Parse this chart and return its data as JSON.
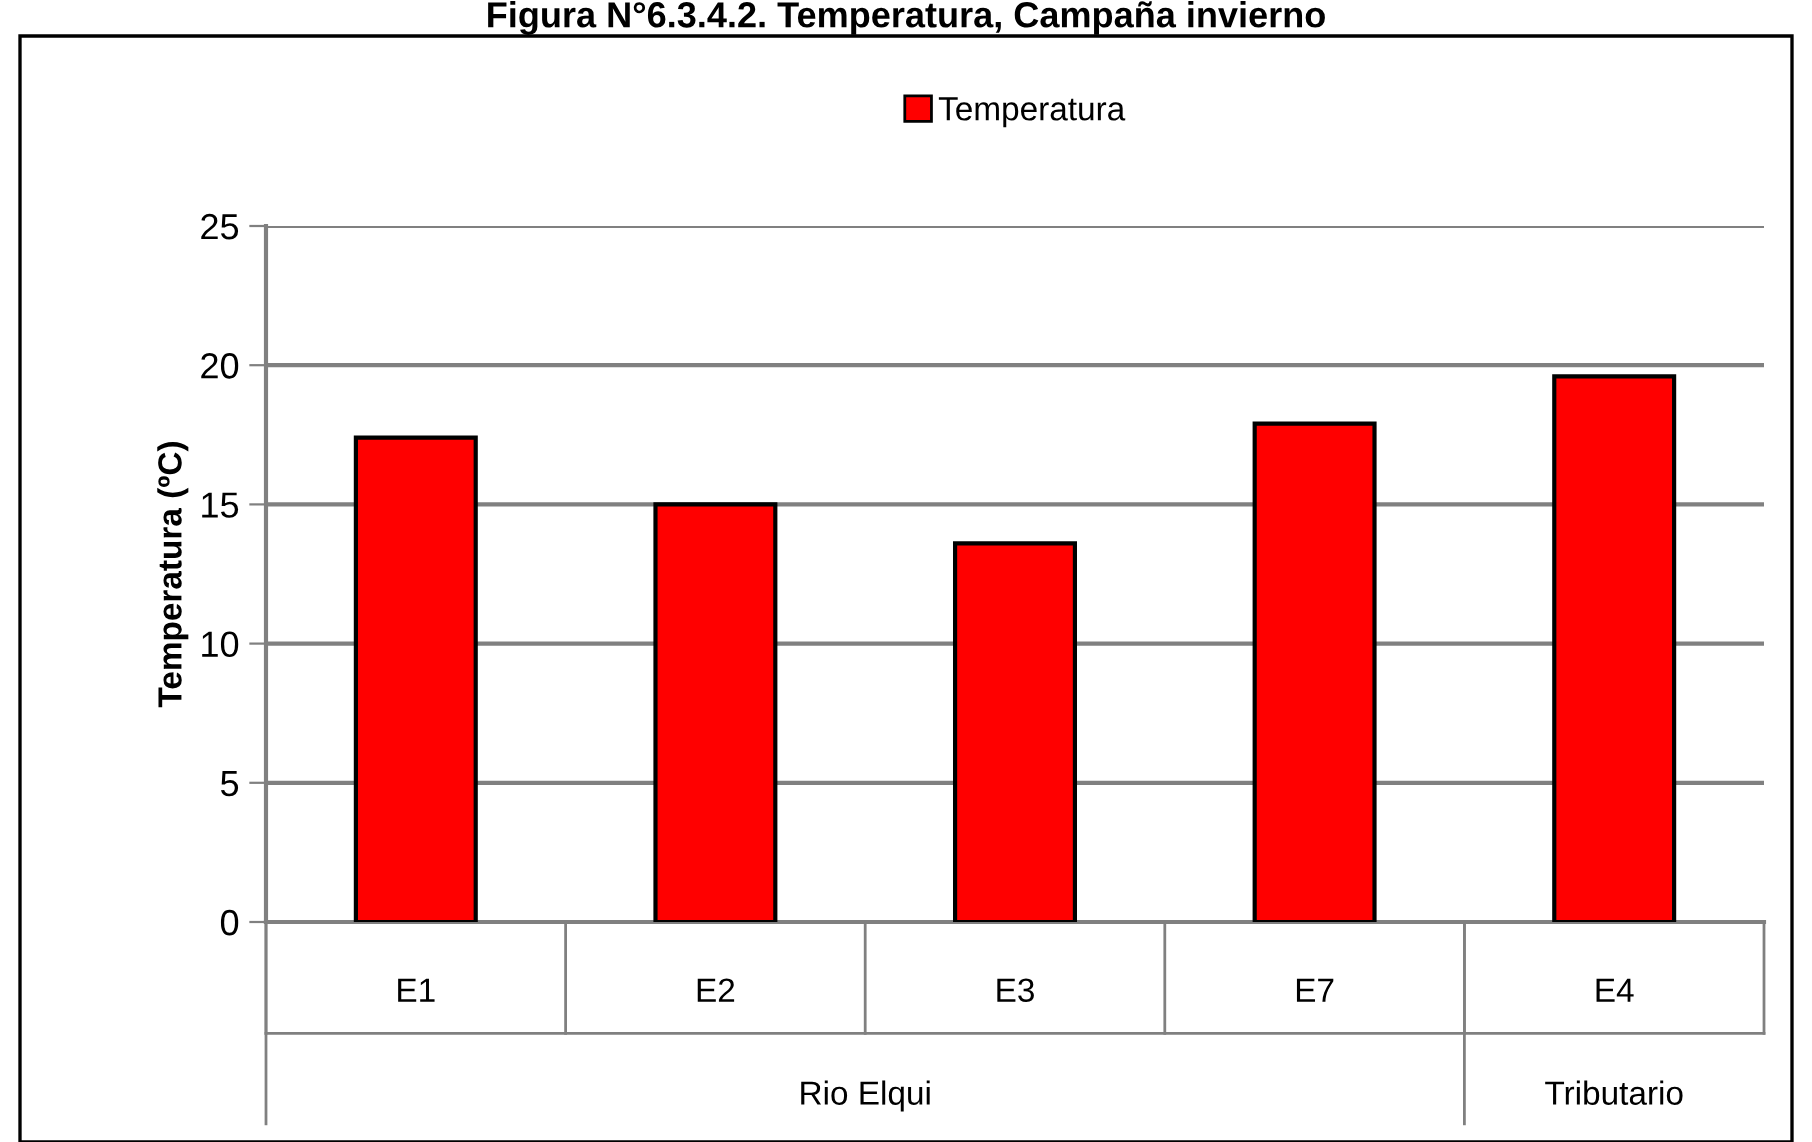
{
  "chart_data": {
    "type": "bar",
    "title": "Figura N°6.3.4.2. Temperatura, Campaña invierno",
    "ylabel": "Temperatura (ºC)",
    "categories": [
      "E1",
      "E2",
      "E3",
      "E7",
      "E4"
    ],
    "series": [
      {
        "name": "Temperatura",
        "color": "#ff0000",
        "values": [
          17.4,
          15.0,
          13.6,
          17.9,
          19.6
        ]
      }
    ],
    "annotations": [
      "Rio Elqui",
      "Tributario"
    ],
    "ylim": [
      0,
      25
    ],
    "yticks": [
      0,
      5,
      10,
      15,
      20,
      25
    ],
    "grid": "y",
    "legend": "top"
  }
}
